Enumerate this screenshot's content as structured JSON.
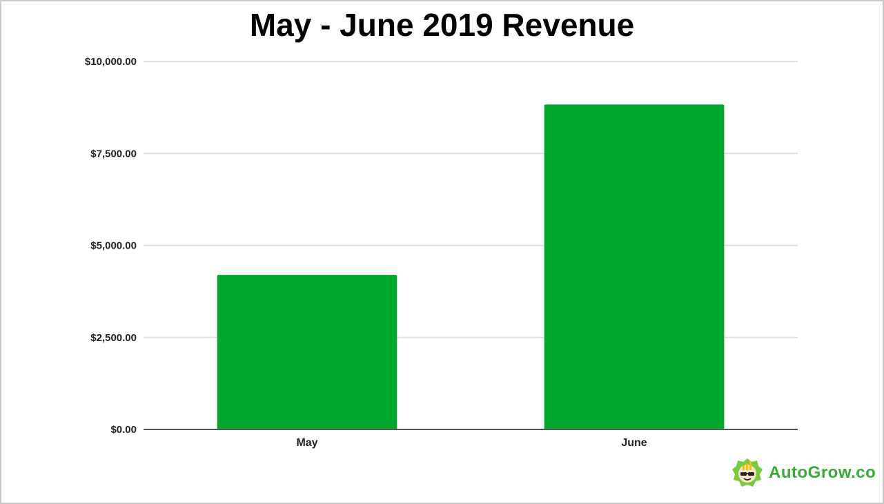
{
  "chart_data": {
    "type": "bar",
    "title": "May - June 2019 Revenue",
    "xlabel": "",
    "ylabel": "",
    "categories": [
      "May",
      "June"
    ],
    "values": [
      4200,
      8830
    ],
    "ylim": [
      0,
      10000
    ],
    "yticks": [
      0,
      2500,
      5000,
      7500,
      10000
    ],
    "ytick_labels": [
      "$0.00",
      "$2,500.00",
      "$5,000.00",
      "$7,500.00",
      "$10,000.00"
    ],
    "grid": true,
    "legend": "none",
    "colors": {
      "bar": "#00a82d",
      "grid": "#e0e0e0",
      "axis": "#555555"
    }
  },
  "brand": {
    "name": "AutoGrow.co",
    "color": "#3aa935",
    "icon": "autogrow-mascot-logo"
  }
}
